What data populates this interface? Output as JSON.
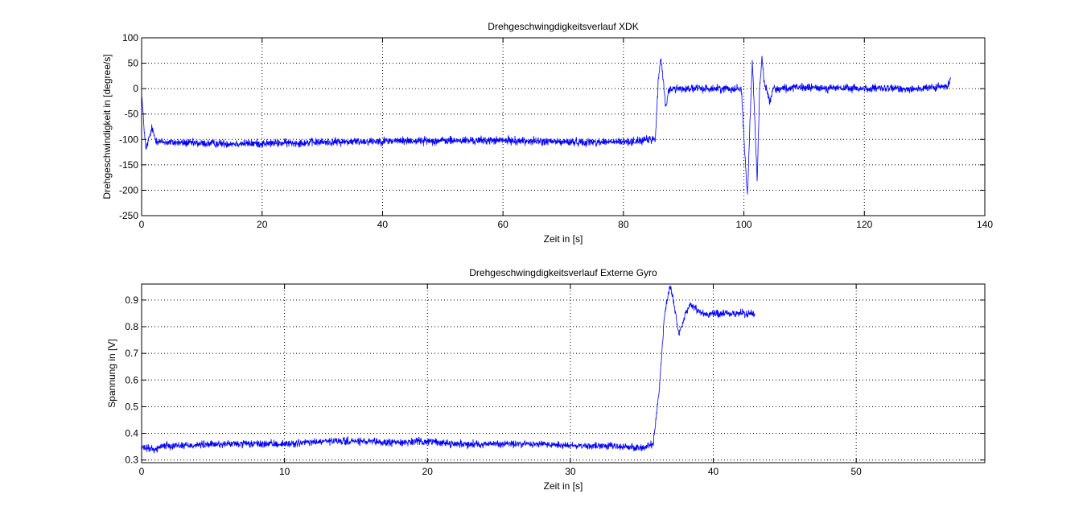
{
  "chart_data": [
    {
      "type": "line",
      "title": "Drehgeschwingdigkeitsverlauf XDK",
      "xlabel": "Zeit in [s]",
      "ylabel": "Drehgeschwindigkeit in [degree/s]",
      "xlim": [
        0,
        140
      ],
      "ylim": [
        -250,
        100
      ],
      "xticks": [
        0,
        20,
        40,
        60,
        80,
        100,
        120,
        140
      ],
      "yticks": [
        -250,
        -200,
        -150,
        -100,
        -50,
        0,
        50,
        100
      ],
      "grid": true,
      "series": [
        {
          "color": "#0000ff",
          "noise": 4,
          "x": [
            0,
            0.3,
            0.7,
            1.2,
            1.7,
            2.3,
            3,
            10,
            20,
            40,
            60,
            70,
            80,
            85.3,
            85.8,
            86.2,
            86.6,
            87,
            87.5,
            88,
            90,
            95,
            99.6,
            100.1,
            100.6,
            101.0,
            101.4,
            101.8,
            102.2,
            102.6,
            103.0,
            103.4,
            103.8,
            104.3,
            104.8,
            106,
            110,
            120,
            130,
            134.0,
            134.3
          ],
          "y": [
            -10,
            -60,
            -120,
            -100,
            -78,
            -100,
            -105,
            -108,
            -108,
            -103,
            -102,
            -105,
            -105,
            -100,
            20,
            58,
            20,
            -35,
            -5,
            0,
            0,
            0,
            0,
            -120,
            -210,
            -70,
            55,
            -60,
            -185,
            0,
            60,
            10,
            -5,
            -25,
            0,
            0,
            2,
            0,
            0,
            5,
            20
          ]
        }
      ]
    },
    {
      "type": "line",
      "title": "Drehgeschwingdigkeitsverlauf Externe Gyro",
      "xlabel": "Zeit in [s]",
      "ylabel": "Spannung in [V]",
      "xlim": [
        0,
        59
      ],
      "ylim": [
        0.29,
        0.96
      ],
      "xticks": [
        0,
        10,
        20,
        30,
        40,
        50
      ],
      "yticks": [
        0.3,
        0.4,
        0.5,
        0.6,
        0.7,
        0.8,
        0.9
      ],
      "grid": true,
      "series": [
        {
          "color": "#0000ff",
          "noise": 0.007,
          "x": [
            0,
            1,
            1.5,
            3,
            6,
            10,
            13,
            15,
            17,
            20,
            22,
            25,
            28,
            30,
            34,
            35,
            35.8,
            36.2,
            36.6,
            37.0,
            37.3,
            37.6,
            38.0,
            38.4,
            38.8,
            39.5,
            40.5,
            42,
            42.9
          ],
          "y": [
            0.345,
            0.34,
            0.355,
            0.355,
            0.36,
            0.36,
            0.37,
            0.37,
            0.365,
            0.37,
            0.36,
            0.36,
            0.36,
            0.355,
            0.35,
            0.345,
            0.36,
            0.55,
            0.85,
            0.955,
            0.87,
            0.77,
            0.84,
            0.885,
            0.865,
            0.845,
            0.85,
            0.85,
            0.85
          ]
        }
      ]
    }
  ]
}
